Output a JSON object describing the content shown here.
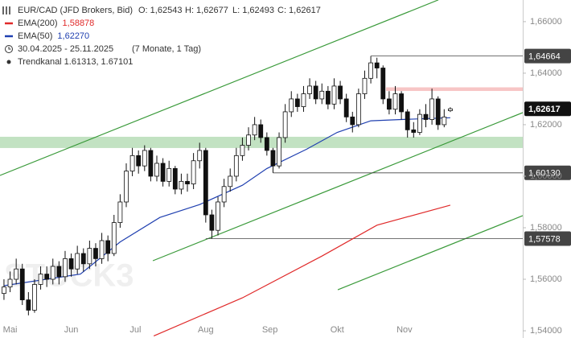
{
  "chart_data": {
    "type": "candlestick",
    "legend": {
      "instrument": "EUR/CAD (JFD Brokers, Bid)",
      "ohlc": [
        "O: 1,62543",
        "H: 1,62677",
        "L: 1,62493",
        "C: 1,62617"
      ],
      "period": "30.04.2025 - 25.11.2025",
      "period_length": "(7 Monate, 1 Tag)"
    },
    "watermark": "STOCK3",
    "x": [
      0,
      2,
      4,
      6,
      8,
      10,
      12,
      14,
      16,
      18,
      20,
      22,
      24,
      26,
      28,
      30,
      32,
      34,
      36,
      38,
      40,
      42,
      44,
      46,
      48,
      50,
      52,
      54,
      56,
      58,
      60,
      62,
      64,
      66,
      68,
      70,
      72,
      74,
      76,
      78,
      80,
      82,
      84,
      86,
      88,
      90,
      92,
      94,
      96,
      98,
      100,
      102,
      104,
      106,
      108,
      110,
      112,
      114,
      116,
      118,
      120,
      122,
      124,
      126,
      128,
      130,
      132,
      134,
      136,
      138,
      140,
      142,
      144,
      146
    ],
    "open": [
      1.5545,
      1.557,
      1.56,
      1.564,
      1.552,
      1.548,
      1.558,
      1.562,
      1.56,
      1.565,
      1.561,
      1.568,
      1.564,
      1.57,
      1.566,
      1.572,
      1.568,
      1.575,
      1.57,
      1.582,
      1.59,
      1.602,
      1.608,
      1.604,
      1.61,
      1.6,
      1.605,
      1.598,
      1.603,
      1.595,
      1.598,
      1.597,
      1.606,
      1.61,
      1.585,
      1.579,
      1.59,
      1.596,
      1.6,
      1.608,
      1.612,
      1.616,
      1.62,
      1.615,
      1.61,
      1.604,
      1.615,
      1.625,
      1.63,
      1.627,
      1.632,
      1.635,
      1.63,
      1.633,
      1.628,
      1.635,
      1.63,
      1.623,
      1.62,
      1.632,
      1.638,
      1.644,
      1.642,
      1.63,
      1.626,
      1.632,
      1.625,
      1.618,
      1.617,
      1.624,
      1.622,
      1.63,
      1.62,
      1.62543
    ],
    "high": [
      1.56,
      1.563,
      1.568,
      1.566,
      1.555,
      1.56,
      1.565,
      1.565,
      1.568,
      1.567,
      1.571,
      1.57,
      1.573,
      1.572,
      1.575,
      1.574,
      1.578,
      1.577,
      1.585,
      1.593,
      1.605,
      1.611,
      1.61,
      1.612,
      1.611,
      1.608,
      1.607,
      1.606,
      1.604,
      1.601,
      1.601,
      1.609,
      1.613,
      1.611,
      1.587,
      1.592,
      1.599,
      1.603,
      1.611,
      1.615,
      1.619,
      1.623,
      1.622,
      1.617,
      1.611,
      1.617,
      1.628,
      1.633,
      1.632,
      1.635,
      1.638,
      1.637,
      1.636,
      1.635,
      1.638,
      1.637,
      1.632,
      1.625,
      1.634,
      1.641,
      1.64664,
      1.646,
      1.643,
      1.633,
      1.635,
      1.633,
      1.626,
      1.621,
      1.626,
      1.628,
      1.634,
      1.631,
      1.626,
      1.62677
    ],
    "low": [
      1.552,
      1.555,
      1.558,
      1.55,
      1.546,
      1.547,
      1.556,
      1.557,
      1.558,
      1.558,
      1.559,
      1.561,
      1.562,
      1.563,
      1.564,
      1.565,
      1.566,
      1.567,
      1.569,
      1.58,
      1.588,
      1.6,
      1.601,
      1.602,
      1.598,
      1.598,
      1.596,
      1.596,
      1.593,
      1.593,
      1.594,
      1.595,
      1.603,
      1.582,
      1.57578,
      1.577,
      1.588,
      1.594,
      1.598,
      1.606,
      1.61,
      1.614,
      1.613,
      1.608,
      1.6013,
      1.603,
      1.613,
      1.623,
      1.625,
      1.625,
      1.63,
      1.628,
      1.628,
      1.626,
      1.626,
      1.628,
      1.621,
      1.617,
      1.619,
      1.63,
      1.636,
      1.638,
      1.628,
      1.624,
      1.624,
      1.622,
      1.615,
      1.615,
      1.616,
      1.619,
      1.62,
      1.618,
      1.619,
      1.62493
    ],
    "close": [
      1.557,
      1.56,
      1.564,
      1.552,
      1.548,
      1.558,
      1.562,
      1.56,
      1.565,
      1.561,
      1.568,
      1.564,
      1.57,
      1.566,
      1.572,
      1.568,
      1.575,
      1.57,
      1.582,
      1.59,
      1.602,
      1.608,
      1.604,
      1.61,
      1.6,
      1.605,
      1.598,
      1.603,
      1.595,
      1.598,
      1.597,
      1.606,
      1.61,
      1.585,
      1.579,
      1.59,
      1.596,
      1.6,
      1.608,
      1.612,
      1.616,
      1.62,
      1.615,
      1.61,
      1.604,
      1.615,
      1.625,
      1.63,
      1.627,
      1.632,
      1.635,
      1.63,
      1.633,
      1.628,
      1.635,
      1.63,
      1.623,
      1.62,
      1.632,
      1.638,
      1.644,
      1.642,
      1.63,
      1.626,
      1.632,
      1.625,
      1.618,
      1.617,
      1.624,
      1.622,
      1.63,
      1.62,
      1.623,
      1.62617
    ],
    "series": [
      {
        "name": "EMA(200)",
        "label": "1,58878",
        "color": "#e02a2a",
        "x": [
          49,
          78,
          104,
          122,
          146
        ],
        "values": [
          1.538,
          1.5528,
          1.569,
          1.581,
          1.58878
        ]
      },
      {
        "name": "EMA(50)",
        "label": "1,62270",
        "color": "#2040b0",
        "x": [
          0,
          25,
          38,
          51,
          64,
          78,
          86,
          99,
          109,
          120,
          130,
          146
        ],
        "values": [
          1.5575,
          1.562,
          1.5745,
          1.584,
          1.589,
          1.5965,
          1.603,
          1.6105,
          1.617,
          1.6215,
          1.622,
          1.6227
        ]
      }
    ],
    "trend_channel": {
      "name": "Trendkanal 1.61313, 1.67101",
      "color": "#3a9a3a",
      "lines": [
        {
          "x": [
            -1.3,
            142.1
          ],
          "y": [
            1.60031,
            1.66844
          ]
        },
        {
          "x": [
            48.7,
            169.7
          ],
          "y": [
            1.56719,
            1.62469
          ]
        },
        {
          "x": [
            109.2,
            169.7
          ],
          "y": [
            1.55594,
            1.58469
          ]
        }
      ]
    },
    "zones": [
      {
        "from": 1.61094,
        "to": 1.61531,
        "x_start": -1.3,
        "color": "rgba(120,190,120,0.45)"
      },
      {
        "from": 1.6331,
        "to": 1.6345,
        "x_start": 125,
        "color": "rgba(240,150,150,0.55)"
      }
    ],
    "levels": [
      {
        "value": 1.64664,
        "label": "1,64664",
        "x_start": 120
      },
      {
        "value": 1.6013,
        "label": "1,60130",
        "x_start": 88
      },
      {
        "value": 1.57578,
        "label": "1,57578",
        "x_start": 66
      }
    ],
    "last_price": {
      "value": 1.62617,
      "label": "1,62617"
    },
    "xlim": [
      -1.3,
      169.7
    ],
    "ylim": [
      1.5372,
      1.6684
    ],
    "xticks": [
      {
        "value": 2,
        "label": "Mai"
      },
      {
        "value": 22,
        "label": "Jun"
      },
      {
        "value": 43,
        "label": "Jul"
      },
      {
        "value": 66,
        "label": "Aug"
      },
      {
        "value": 87,
        "label": "Sep"
      },
      {
        "value": 109,
        "label": "Okt"
      },
      {
        "value": 131,
        "label": "Nov"
      }
    ],
    "yticks": [
      {
        "value": 1.66,
        "label": "1,66000"
      },
      {
        "value": 1.64,
        "label": "1,64000"
      },
      {
        "value": 1.62,
        "label": "1,62000"
      },
      {
        "value": 1.6,
        "label": "1,60000"
      },
      {
        "value": 1.58,
        "label": "1,58000"
      },
      {
        "value": 1.56,
        "label": "1,56000"
      },
      {
        "value": 1.54,
        "label": "1,54000"
      }
    ]
  }
}
